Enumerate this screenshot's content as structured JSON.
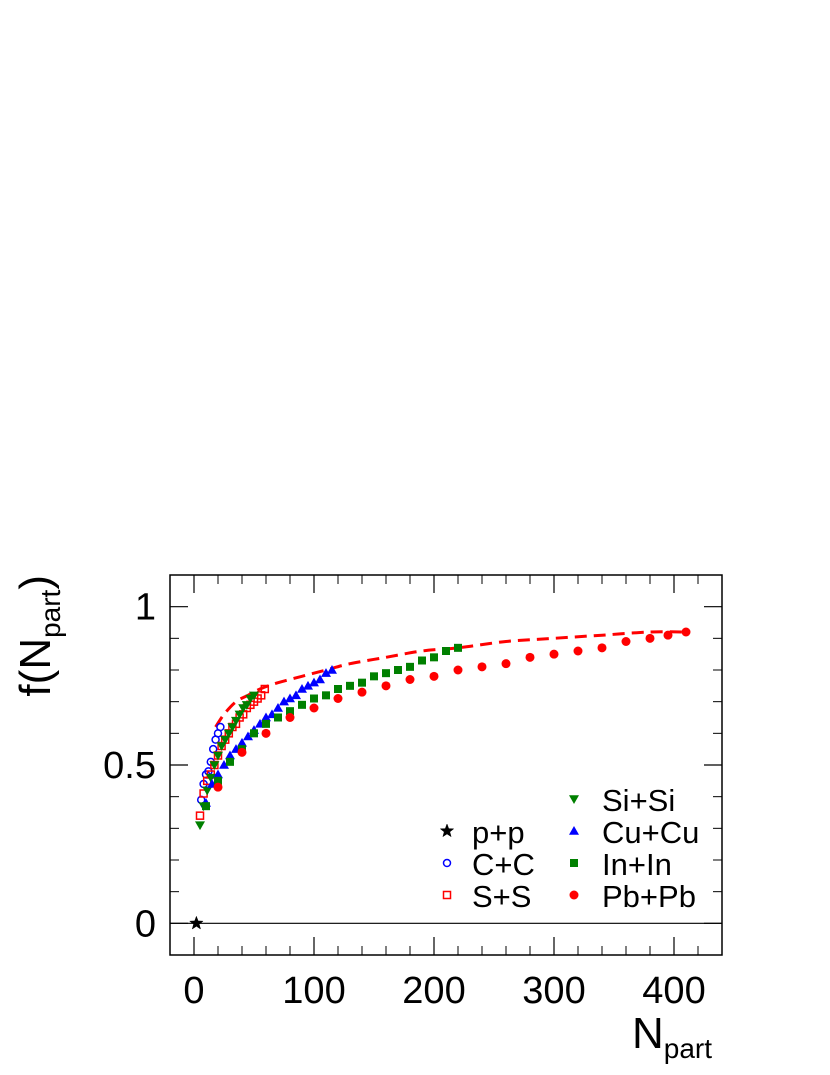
{
  "chart_data": {
    "type": "scatter",
    "xlabel": "N",
    "xlabel_sub": "part",
    "ylabel": "f(N",
    "ylabel_sub": "part",
    "ylabel_close": ")",
    "xlim": [
      -20,
      440
    ],
    "ylim": [
      -0.1,
      1.1
    ],
    "x_ticks": [
      0,
      100,
      200,
      300,
      400
    ],
    "y_ticks": [
      0,
      0.5,
      1
    ],
    "x_tick_labels": [
      "0",
      "100",
      "200",
      "300",
      "400"
    ],
    "y_tick_labels": [
      "0",
      "0.5",
      "1"
    ],
    "grid": false,
    "reference_line_y": 0,
    "legend_position": "bottom-right",
    "series": [
      {
        "name": "p+p",
        "marker": "star",
        "color": "#000000",
        "filled": true,
        "x": [
          2
        ],
        "y": [
          0.0
        ]
      },
      {
        "name": "C+C",
        "marker": "circle",
        "color": "#0000ff",
        "filled": false,
        "x": [
          6,
          8,
          10,
          12,
          14,
          16,
          18,
          20,
          22
        ],
        "y": [
          0.39,
          0.44,
          0.47,
          0.48,
          0.51,
          0.55,
          0.58,
          0.6,
          0.62
        ]
      },
      {
        "name": "S+S",
        "marker": "square",
        "color": "#ff0000",
        "filled": false,
        "x": [
          5,
          8,
          11,
          14,
          17,
          20,
          23,
          26,
          29,
          32,
          35,
          38,
          41,
          44,
          47,
          50,
          53,
          56,
          59
        ],
        "y": [
          0.34,
          0.41,
          0.45,
          0.47,
          0.5,
          0.53,
          0.56,
          0.58,
          0.6,
          0.62,
          0.63,
          0.65,
          0.66,
          0.68,
          0.69,
          0.7,
          0.71,
          0.72,
          0.74
        ]
      },
      {
        "name": "Si+Si",
        "marker": "triangle-down",
        "color": "#008000",
        "filled": true,
        "x": [
          5,
          8,
          11,
          14,
          17,
          20,
          23,
          26,
          29,
          32,
          35,
          38,
          41,
          44,
          47,
          50
        ],
        "y": [
          0.31,
          0.37,
          0.42,
          0.46,
          0.5,
          0.53,
          0.56,
          0.58,
          0.6,
          0.62,
          0.64,
          0.66,
          0.68,
          0.69,
          0.71,
          0.72
        ]
      },
      {
        "name": "Cu+Cu",
        "marker": "triangle-up",
        "color": "#0000ff",
        "filled": true,
        "x": [
          10,
          15,
          20,
          25,
          30,
          35,
          40,
          45,
          50,
          55,
          60,
          65,
          70,
          75,
          80,
          85,
          90,
          95,
          100,
          105,
          110,
          115
        ],
        "y": [
          0.38,
          0.44,
          0.47,
          0.5,
          0.53,
          0.55,
          0.57,
          0.59,
          0.61,
          0.63,
          0.65,
          0.66,
          0.68,
          0.7,
          0.71,
          0.72,
          0.74,
          0.75,
          0.76,
          0.77,
          0.79,
          0.8
        ]
      },
      {
        "name": "In+In",
        "marker": "square",
        "color": "#008000",
        "filled": true,
        "x": [
          10,
          20,
          30,
          40,
          50,
          60,
          70,
          80,
          90,
          100,
          110,
          120,
          130,
          140,
          150,
          160,
          170,
          180,
          190,
          200,
          210,
          220
        ],
        "y": [
          0.37,
          0.45,
          0.51,
          0.55,
          0.6,
          0.63,
          0.65,
          0.67,
          0.69,
          0.71,
          0.72,
          0.74,
          0.75,
          0.76,
          0.78,
          0.79,
          0.8,
          0.81,
          0.83,
          0.84,
          0.86,
          0.87
        ]
      },
      {
        "name": "Pb+Pb",
        "marker": "circle",
        "color": "#ff0000",
        "filled": true,
        "x": [
          20,
          40,
          60,
          80,
          100,
          120,
          140,
          160,
          180,
          200,
          220,
          240,
          260,
          280,
          300,
          320,
          340,
          360,
          380,
          395,
          410
        ],
        "y": [
          0.43,
          0.54,
          0.6,
          0.65,
          0.68,
          0.71,
          0.73,
          0.75,
          0.77,
          0.78,
          0.8,
          0.81,
          0.82,
          0.84,
          0.85,
          0.86,
          0.87,
          0.89,
          0.9,
          0.91,
          0.92
        ]
      }
    ],
    "fit_curve": {
      "style": "dashed",
      "color": "#ff0000",
      "function": "0.95*(1-exp(-N/14))-ish saturating",
      "x": [
        18,
        25,
        35,
        45,
        55,
        70,
        90,
        110,
        130,
        160,
        190,
        220,
        260,
        300,
        340,
        380,
        410
      ],
      "y": [
        0.62,
        0.66,
        0.7,
        0.72,
        0.74,
        0.76,
        0.78,
        0.8,
        0.82,
        0.84,
        0.86,
        0.87,
        0.89,
        0.9,
        0.91,
        0.92,
        0.92
      ]
    }
  }
}
